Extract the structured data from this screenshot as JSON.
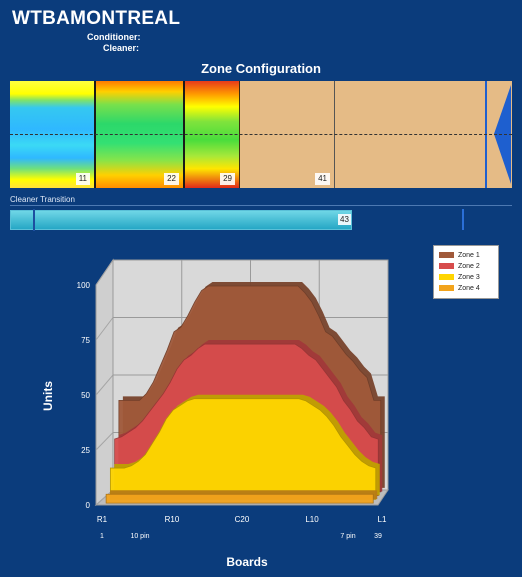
{
  "header": {
    "title": "WTBAMONTREAL",
    "conditioner_label": "Conditioner:",
    "cleaner_label": "Cleaner:"
  },
  "zone_config": {
    "title": "Zone Configuration",
    "zones": [
      "11",
      "22",
      "29",
      "41"
    ]
  },
  "transition": {
    "label": "Cleaner Transition",
    "value": "43"
  },
  "chart_data": {
    "type": "area",
    "xlabel": "Boards",
    "ylabel": "Units",
    "ylim": [
      0,
      100
    ],
    "y_ticks": [
      0,
      25,
      50,
      75,
      100
    ],
    "x_tick_labels": [
      "R1",
      "R10",
      "C20",
      "L10",
      "L1"
    ],
    "x_sub_labels": [
      "1",
      "10 pin",
      "7 pin",
      "39"
    ],
    "legend_position": "top-right",
    "grid": true,
    "x": [
      1,
      2,
      3,
      4,
      5,
      6,
      7,
      8,
      9,
      10,
      11,
      12,
      13,
      14,
      15,
      16,
      17,
      18,
      19,
      20,
      21,
      22,
      23,
      24,
      25,
      26,
      27,
      28,
      29,
      30,
      31,
      32,
      33,
      34,
      35,
      36,
      37,
      38,
      39
    ],
    "series": [
      {
        "name": "Zone 1",
        "color": "#a0593a",
        "values": [
          40,
          40,
          40,
          40,
          43,
          48,
          55,
          62,
          70,
          72,
          77,
          83,
          88,
          90,
          90,
          90,
          90,
          90,
          90,
          90,
          90,
          90,
          90,
          90,
          90,
          90,
          90,
          87,
          83,
          77,
          70,
          68,
          64,
          60,
          57,
          53,
          50,
          40,
          40
        ]
      },
      {
        "name": "Zone 2",
        "color": "#d74c4c",
        "values": [
          25,
          26,
          28,
          30,
          33,
          37,
          41,
          45,
          50,
          56,
          60,
          62,
          65,
          67,
          67,
          67,
          67,
          67,
          67,
          67,
          67,
          67,
          67,
          67,
          67,
          67,
          67,
          65,
          62,
          60,
          56,
          52,
          48,
          42,
          38,
          33,
          30,
          26,
          25
        ]
      },
      {
        "name": "Zone 3",
        "color": "#ffd500",
        "values": [
          14,
          14,
          14,
          15,
          17,
          20,
          25,
          30,
          36,
          40,
          42,
          44,
          45,
          45,
          45,
          45,
          45,
          45,
          45,
          45,
          45,
          45,
          45,
          45,
          45,
          45,
          45,
          45,
          44,
          42,
          40,
          37,
          33,
          28,
          24,
          20,
          17,
          15,
          14
        ]
      },
      {
        "name": "Zone 4",
        "color": "#f2a31c",
        "values": [
          4,
          4,
          4,
          4,
          4,
          4,
          4,
          4,
          4,
          4,
          4,
          4,
          4,
          4,
          4,
          4,
          4,
          4,
          4,
          4,
          4,
          4,
          4,
          4,
          4,
          4,
          4,
          4,
          4,
          4,
          4,
          4,
          4,
          4,
          4,
          4,
          4,
          4,
          4
        ]
      }
    ]
  }
}
